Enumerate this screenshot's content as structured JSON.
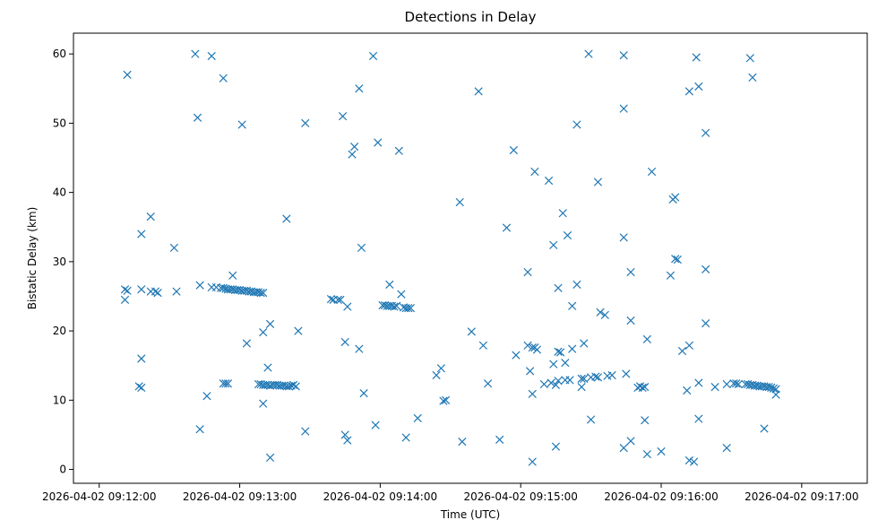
{
  "chart_data": {
    "type": "scatter",
    "title": "Detections in Delay",
    "xlabel": "Time (UTC)",
    "ylabel": "Bistatic Delay (km)",
    "marker": "x",
    "color": "#1f77b4",
    "grid": false,
    "legend": "none",
    "xlim": [
      "2026-04-02 09:11:49",
      "2026-04-02 09:17:28"
    ],
    "ylim": [
      -2,
      63
    ],
    "xticks": [
      "2026-04-02 09:12:00",
      "2026-04-02 09:13:00",
      "2026-04-02 09:14:00",
      "2026-04-02 09:15:00",
      "2026-04-02 09:16:00",
      "2026-04-02 09:17:00"
    ],
    "yticks": [
      0,
      10,
      20,
      30,
      40,
      50,
      60
    ],
    "points": [
      [
        "2026-04-02 09:12:12",
        57.0
      ],
      [
        "2026-04-02 09:12:11",
        26.0
      ],
      [
        "2026-04-02 09:12:12",
        25.8
      ],
      [
        "2026-04-02 09:12:11",
        24.5
      ],
      [
        "2026-04-02 09:12:18",
        34.0
      ],
      [
        "2026-04-02 09:12:18",
        26.0
      ],
      [
        "2026-04-02 09:12:18",
        16.0
      ],
      [
        "2026-04-02 09:12:17",
        12.0
      ],
      [
        "2026-04-02 09:12:18",
        11.8
      ],
      [
        "2026-04-02 09:12:22",
        36.5
      ],
      [
        "2026-04-02 09:12:22",
        25.7
      ],
      [
        "2026-04-02 09:12:24",
        25.7
      ],
      [
        "2026-04-02 09:12:25",
        25.5
      ],
      [
        "2026-04-02 09:12:32",
        32.0
      ],
      [
        "2026-04-02 09:12:33",
        25.7
      ],
      [
        "2026-04-02 09:12:41",
        60.0
      ],
      [
        "2026-04-02 09:12:42",
        50.8
      ],
      [
        "2026-04-02 09:12:43",
        26.6
      ],
      [
        "2026-04-02 09:12:43",
        5.8
      ],
      [
        "2026-04-02 09:12:46",
        10.6
      ],
      [
        "2026-04-02 09:12:48",
        59.7
      ],
      [
        "2026-04-02 09:12:48",
        26.3
      ],
      [
        "2026-04-02 09:12:50",
        26.3
      ],
      [
        "2026-04-02 09:12:52",
        26.2
      ],
      [
        "2026-04-02 09:12:53",
        56.5
      ],
      [
        "2026-04-02 09:12:53",
        26.2
      ],
      [
        "2026-04-02 09:12:53",
        12.4
      ],
      [
        "2026-04-02 09:12:54",
        26.1
      ],
      [
        "2026-04-02 09:12:54",
        12.4
      ],
      [
        "2026-04-02 09:12:55",
        26.0
      ],
      [
        "2026-04-02 09:12:55",
        12.4
      ],
      [
        "2026-04-02 09:12:56",
        26.0
      ],
      [
        "2026-04-02 09:12:57",
        28.0
      ],
      [
        "2026-04-02 09:12:57",
        26.0
      ],
      [
        "2026-04-02 09:12:58",
        25.9
      ],
      [
        "2026-04-02 09:12:59",
        25.9
      ],
      [
        "2026-04-02 09:13:00",
        25.9
      ],
      [
        "2026-04-02 09:13:01",
        49.8
      ],
      [
        "2026-04-02 09:13:01",
        25.8
      ],
      [
        "2026-04-02 09:13:02",
        25.8
      ],
      [
        "2026-04-02 09:13:03",
        18.2
      ],
      [
        "2026-04-02 09:13:03",
        25.8
      ],
      [
        "2026-04-02 09:13:04",
        25.7
      ],
      [
        "2026-04-02 09:13:05",
        25.7
      ],
      [
        "2026-04-02 09:13:06",
        25.6
      ],
      [
        "2026-04-02 09:13:07",
        25.6
      ],
      [
        "2026-04-02 09:13:08",
        25.6
      ],
      [
        "2026-04-02 09:13:09",
        25.5
      ],
      [
        "2026-04-02 09:13:10",
        25.5
      ],
      [
        "2026-04-02 09:13:08",
        12.3
      ],
      [
        "2026-04-02 09:13:09",
        12.3
      ],
      [
        "2026-04-02 09:13:10",
        12.2
      ],
      [
        "2026-04-02 09:13:10",
        19.8
      ],
      [
        "2026-04-02 09:13:10",
        9.5
      ],
      [
        "2026-04-02 09:13:11",
        12.2
      ],
      [
        "2026-04-02 09:13:12",
        14.7
      ],
      [
        "2026-04-02 09:13:12",
        12.2
      ],
      [
        "2026-04-02 09:13:13",
        21.0
      ],
      [
        "2026-04-02 09:13:13",
        12.1
      ],
      [
        "2026-04-02 09:13:13",
        1.7
      ],
      [
        "2026-04-02 09:13:14",
        12.2
      ],
      [
        "2026-04-02 09:13:15",
        12.2
      ],
      [
        "2026-04-02 09:13:16",
        12.2
      ],
      [
        "2026-04-02 09:13:17",
        12.1
      ],
      [
        "2026-04-02 09:13:18",
        12.1
      ],
      [
        "2026-04-02 09:13:19",
        12.1
      ],
      [
        "2026-04-02 09:13:20",
        12.0
      ],
      [
        "2026-04-02 09:13:20",
        36.2
      ],
      [
        "2026-04-02 09:13:21",
        12.0
      ],
      [
        "2026-04-02 09:13:22",
        12.1
      ],
      [
        "2026-04-02 09:13:23",
        12.2
      ],
      [
        "2026-04-02 09:13:24",
        12.0
      ],
      [
        "2026-04-02 09:13:25",
        20.0
      ],
      [
        "2026-04-02 09:13:28",
        50.0
      ],
      [
        "2026-04-02 09:13:28",
        5.5
      ],
      [
        "2026-04-02 09:13:39",
        24.6
      ],
      [
        "2026-04-02 09:13:40",
        24.5
      ],
      [
        "2026-04-02 09:13:42",
        24.5
      ],
      [
        "2026-04-02 09:13:43",
        24.5
      ],
      [
        "2026-04-02 09:13:44",
        51.0
      ],
      [
        "2026-04-02 09:13:45",
        18.4
      ],
      [
        "2026-04-02 09:13:45",
        5.0
      ],
      [
        "2026-04-02 09:13:46",
        23.5
      ],
      [
        "2026-04-02 09:13:46",
        4.2
      ],
      [
        "2026-04-02 09:13:48",
        45.5
      ],
      [
        "2026-04-02 09:13:49",
        46.6
      ],
      [
        "2026-04-02 09:13:51",
        17.4
      ],
      [
        "2026-04-02 09:13:51",
        55.0
      ],
      [
        "2026-04-02 09:13:52",
        32.0
      ],
      [
        "2026-04-02 09:13:53",
        11.0
      ],
      [
        "2026-04-02 09:13:57",
        59.7
      ],
      [
        "2026-04-02 09:13:59",
        47.2
      ],
      [
        "2026-04-02 09:13:58",
        6.4
      ],
      [
        "2026-04-02 09:14:01",
        23.7
      ],
      [
        "2026-04-02 09:14:02",
        23.7
      ],
      [
        "2026-04-02 09:14:03",
        23.6
      ],
      [
        "2026-04-02 09:14:04",
        26.7
      ],
      [
        "2026-04-02 09:14:04",
        23.6
      ],
      [
        "2026-04-02 09:14:05",
        23.6
      ],
      [
        "2026-04-02 09:14:06",
        23.5
      ],
      [
        "2026-04-02 09:14:07",
        23.6
      ],
      [
        "2026-04-02 09:14:08",
        46.0
      ],
      [
        "2026-04-02 09:14:09",
        25.3
      ],
      [
        "2026-04-02 09:14:10",
        23.4
      ],
      [
        "2026-04-02 09:14:11",
        23.3
      ],
      [
        "2026-04-02 09:14:12",
        23.3
      ],
      [
        "2026-04-02 09:14:13",
        23.3
      ],
      [
        "2026-04-02 09:14:11",
        4.6
      ],
      [
        "2026-04-02 09:14:16",
        7.4
      ],
      [
        "2026-04-02 09:14:24",
        13.6
      ],
      [
        "2026-04-02 09:14:26",
        14.6
      ],
      [
        "2026-04-02 09:14:27",
        9.9
      ],
      [
        "2026-04-02 09:14:28",
        10.0
      ],
      [
        "2026-04-02 09:14:34",
        38.6
      ],
      [
        "2026-04-02 09:14:35",
        4.0
      ],
      [
        "2026-04-02 09:14:39",
        19.9
      ],
      [
        "2026-04-02 09:14:42",
        54.6
      ],
      [
        "2026-04-02 09:14:44",
        17.9
      ],
      [
        "2026-04-02 09:14:46",
        12.4
      ],
      [
        "2026-04-02 09:14:51",
        4.3
      ],
      [
        "2026-04-02 09:14:54",
        34.9
      ],
      [
        "2026-04-02 09:14:57",
        46.1
      ],
      [
        "2026-04-02 09:14:58",
        16.5
      ],
      [
        "2026-04-02 09:15:03",
        28.5
      ],
      [
        "2026-04-02 09:15:03",
        17.9
      ],
      [
        "2026-04-02 09:15:04",
        14.2
      ],
      [
        "2026-04-02 09:15:05",
        17.6
      ],
      [
        "2026-04-02 09:15:05",
        10.9
      ],
      [
        "2026-04-02 09:15:05",
        1.1
      ],
      [
        "2026-04-02 09:15:06",
        43.0
      ],
      [
        "2026-04-02 09:15:06",
        17.6
      ],
      [
        "2026-04-02 09:15:07",
        17.3
      ],
      [
        "2026-04-02 09:15:10",
        12.3
      ],
      [
        "2026-04-02 09:15:12",
        41.7
      ],
      [
        "2026-04-02 09:15:13",
        12.5
      ],
      [
        "2026-04-02 09:15:14",
        15.2
      ],
      [
        "2026-04-02 09:15:14",
        32.4
      ],
      [
        "2026-04-02 09:15:15",
        12.2
      ],
      [
        "2026-04-02 09:15:15",
        3.3
      ],
      [
        "2026-04-02 09:15:16",
        17.0
      ],
      [
        "2026-04-02 09:15:16",
        12.8
      ],
      [
        "2026-04-02 09:15:16",
        26.2
      ],
      [
        "2026-04-02 09:15:17",
        16.9
      ],
      [
        "2026-04-02 09:15:18",
        37.0
      ],
      [
        "2026-04-02 09:15:19",
        12.9
      ],
      [
        "2026-04-02 09:15:19",
        15.4
      ],
      [
        "2026-04-02 09:15:20",
        33.8
      ],
      [
        "2026-04-02 09:15:21",
        12.9
      ],
      [
        "2026-04-02 09:15:22",
        23.6
      ],
      [
        "2026-04-02 09:15:22",
        17.4
      ],
      [
        "2026-04-02 09:15:24",
        49.8
      ],
      [
        "2026-04-02 09:15:24",
        26.7
      ],
      [
        "2026-04-02 09:15:26",
        13.1
      ],
      [
        "2026-04-02 09:15:27",
        13.1
      ],
      [
        "2026-04-02 09:15:26",
        11.9
      ],
      [
        "2026-04-02 09:15:27",
        18.2
      ],
      [
        "2026-04-02 09:15:29",
        60.0
      ],
      [
        "2026-04-02 09:15:30",
        7.2
      ],
      [
        "2026-04-02 09:15:30",
        13.3
      ],
      [
        "2026-04-02 09:15:32",
        13.4
      ],
      [
        "2026-04-02 09:15:33",
        41.5
      ],
      [
        "2026-04-02 09:15:33",
        13.3
      ],
      [
        "2026-04-02 09:15:34",
        22.7
      ],
      [
        "2026-04-02 09:15:36",
        22.3
      ],
      [
        "2026-04-02 09:15:37",
        13.5
      ],
      [
        "2026-04-02 09:15:39",
        13.6
      ],
      [
        "2026-04-02 09:15:44",
        59.8
      ],
      [
        "2026-04-02 09:15:44",
        52.1
      ],
      [
        "2026-04-02 09:15:44",
        33.5
      ],
      [
        "2026-04-02 09:15:44",
        3.1
      ],
      [
        "2026-04-02 09:15:45",
        13.8
      ],
      [
        "2026-04-02 09:15:47",
        28.5
      ],
      [
        "2026-04-02 09:15:47",
        21.5
      ],
      [
        "2026-04-02 09:15:47",
        4.1
      ],
      [
        "2026-04-02 09:15:50",
        11.8
      ],
      [
        "2026-04-02 09:15:51",
        12.0
      ],
      [
        "2026-04-02 09:15:52",
        11.8
      ],
      [
        "2026-04-02 09:15:53",
        11.9
      ],
      [
        "2026-04-02 09:15:53",
        7.1
      ],
      [
        "2026-04-02 09:15:54",
        18.8
      ],
      [
        "2026-04-02 09:15:54",
        2.2
      ],
      [
        "2026-04-02 09:15:56",
        43.0
      ],
      [
        "2026-04-02 09:16:00",
        2.6
      ],
      [
        "2026-04-02 09:16:04",
        28.0
      ],
      [
        "2026-04-02 09:16:05",
        39.0
      ],
      [
        "2026-04-02 09:16:06",
        39.3
      ],
      [
        "2026-04-02 09:16:06",
        30.4
      ],
      [
        "2026-04-02 09:16:07",
        30.3
      ],
      [
        "2026-04-02 09:16:09",
        17.1
      ],
      [
        "2026-04-02 09:16:11",
        11.4
      ],
      [
        "2026-04-02 09:16:12",
        17.9
      ],
      [
        "2026-04-02 09:16:12",
        54.6
      ],
      [
        "2026-04-02 09:16:12",
        1.3
      ],
      [
        "2026-04-02 09:16:14",
        1.1
      ],
      [
        "2026-04-02 09:16:15",
        59.5
      ],
      [
        "2026-04-02 09:16:16",
        55.3
      ],
      [
        "2026-04-02 09:16:16",
        12.5
      ],
      [
        "2026-04-02 09:16:16",
        7.3
      ],
      [
        "2026-04-02 09:16:19",
        48.6
      ],
      [
        "2026-04-02 09:16:19",
        28.9
      ],
      [
        "2026-04-02 09:16:19",
        21.1
      ],
      [
        "2026-04-02 09:16:23",
        11.9
      ],
      [
        "2026-04-02 09:16:28",
        3.1
      ],
      [
        "2026-04-02 09:16:28",
        12.3
      ],
      [
        "2026-04-02 09:16:31",
        12.4
      ],
      [
        "2026-04-02 09:16:32",
        12.4
      ],
      [
        "2026-04-02 09:16:33",
        12.3
      ],
      [
        "2026-04-02 09:16:36",
        12.3
      ],
      [
        "2026-04-02 09:16:37",
        12.3
      ],
      [
        "2026-04-02 09:16:38",
        12.2
      ],
      [
        "2026-04-02 09:16:39",
        12.2
      ],
      [
        "2026-04-02 09:16:40",
        12.1
      ],
      [
        "2026-04-02 09:16:41",
        12.1
      ],
      [
        "2026-04-02 09:16:42",
        12.0
      ],
      [
        "2026-04-02 09:16:43",
        12.0
      ],
      [
        "2026-04-02 09:16:44",
        12.0
      ],
      [
        "2026-04-02 09:16:45",
        11.9
      ],
      [
        "2026-04-02 09:16:46",
        11.9
      ],
      [
        "2026-04-02 09:16:47",
        11.8
      ],
      [
        "2026-04-02 09:16:48",
        11.7
      ],
      [
        "2026-04-02 09:16:49",
        11.6
      ],
      [
        "2026-04-02 09:16:49",
        10.8
      ],
      [
        "2026-04-02 09:16:38",
        59.4
      ],
      [
        "2026-04-02 09:16:39",
        56.6
      ],
      [
        "2026-04-02 09:16:44",
        5.9
      ]
    ]
  }
}
